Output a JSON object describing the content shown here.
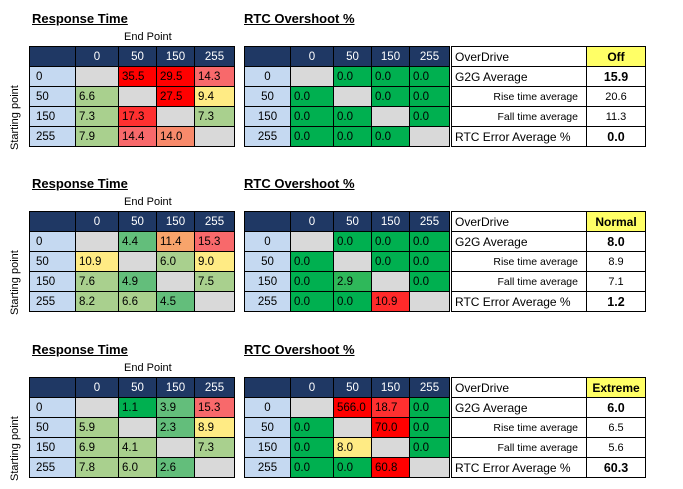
{
  "labels": {
    "response_title": "Response Time",
    "rtc_title": "RTC Overshoot %",
    "end_point": "End Point",
    "starting_point": "Starting point",
    "overdrive": "OverDrive",
    "g2g": "G2G Average",
    "rise": "Rise time average",
    "fall": "Fall time average",
    "rtc_error": "RTC Error Average %"
  },
  "columns": [
    "",
    "0",
    "50",
    "150",
    "255"
  ],
  "rows": [
    "0",
    "50",
    "150",
    "255"
  ],
  "colors": {
    "header": "#1f3864",
    "row_header": "#c5d9f1",
    "empty": "#d9d9d9",
    "mode_highlight": "#ffff66",
    "rtc_zero": "#00b050"
  },
  "sections": [
    {
      "response": [
        [
          "",
          "35.5",
          "29.5",
          "14.3"
        ],
        [
          "6.6",
          "",
          "27.5",
          "9.4"
        ],
        [
          "7.3",
          "17.3",
          "",
          "7.3"
        ],
        [
          "7.9",
          "14.4",
          "14.0",
          ""
        ]
      ],
      "response_colors": [
        [
          "",
          "#ff0000",
          "#ff0000",
          "#f8696b"
        ],
        [
          "#a9d08e",
          "",
          "#ff0000",
          "#ffeb84"
        ],
        [
          "#a9d08e",
          "#ff3030",
          "",
          "#a9d08e"
        ],
        [
          "#a9d08e",
          "#f8696b",
          "#f88a6b",
          ""
        ]
      ],
      "rtc": [
        [
          "",
          "0.0",
          "0.0",
          "0.0"
        ],
        [
          "0.0",
          "",
          "0.0",
          "0.0"
        ],
        [
          "0.0",
          "0.0",
          "",
          "0.0"
        ],
        [
          "0.0",
          "0.0",
          "0.0",
          ""
        ]
      ],
      "rtc_colors": [
        [
          "",
          "#00b050",
          "#00b050",
          "#00b050"
        ],
        [
          "#00b050",
          "",
          "#00b050",
          "#00b050"
        ],
        [
          "#00b050",
          "#00b050",
          "",
          "#00b050"
        ],
        [
          "#00b050",
          "#00b050",
          "#00b050",
          ""
        ]
      ],
      "summary": {
        "mode": "Off",
        "g2g": "15.9",
        "rise": "20.6",
        "fall": "11.3",
        "rtc_error": "0.0"
      }
    },
    {
      "response": [
        [
          "",
          "4.4",
          "11.4",
          "15.3"
        ],
        [
          "10.9",
          "",
          "6.0",
          "9.0"
        ],
        [
          "7.6",
          "4.9",
          "",
          "7.5"
        ],
        [
          "8.2",
          "6.6",
          "4.5",
          ""
        ]
      ],
      "response_colors": [
        [
          "",
          "#63be7b",
          "#f8a46b",
          "#f8696b"
        ],
        [
          "#ffeb84",
          "",
          "#a9d08e",
          "#ffeb84"
        ],
        [
          "#a9d08e",
          "#63be7b",
          "",
          "#a9d08e"
        ],
        [
          "#a9d08e",
          "#a9d08e",
          "#63be7b",
          ""
        ]
      ],
      "rtc": [
        [
          "",
          "0.0",
          "0.0",
          "0.0"
        ],
        [
          "0.0",
          "",
          "0.0",
          "0.0"
        ],
        [
          "0.0",
          "2.9",
          "",
          "0.0"
        ],
        [
          "0.0",
          "0.0",
          "10.9",
          ""
        ]
      ],
      "rtc_colors": [
        [
          "",
          "#00b050",
          "#00b050",
          "#00b050"
        ],
        [
          "#00b050",
          "",
          "#00b050",
          "#00b050"
        ],
        [
          "#00b050",
          "#2fb85a",
          "",
          "#00b050"
        ],
        [
          "#00b050",
          "#00b050",
          "#ff2a2a",
          ""
        ]
      ],
      "summary": {
        "mode": "Normal",
        "g2g": "8.0",
        "rise": "8.9",
        "fall": "7.1",
        "rtc_error": "1.2"
      }
    },
    {
      "response": [
        [
          "",
          "1.1",
          "3.9",
          "15.3"
        ],
        [
          "5.9",
          "",
          "2.3",
          "8.9"
        ],
        [
          "6.9",
          "4.1",
          "",
          "7.3"
        ],
        [
          "7.8",
          "6.0",
          "2.6",
          ""
        ]
      ],
      "response_colors": [
        [
          "",
          "#00b050",
          "#63be7b",
          "#f8696b"
        ],
        [
          "#a9d08e",
          "",
          "#63be7b",
          "#ffeb84"
        ],
        [
          "#a9d08e",
          "#a9d08e",
          "",
          "#a9d08e"
        ],
        [
          "#a9d08e",
          "#a9d08e",
          "#63be7b",
          ""
        ]
      ],
      "rtc": [
        [
          "",
          "566.0",
          "18.7",
          "0.0"
        ],
        [
          "0.0",
          "",
          "70.0",
          "0.0"
        ],
        [
          "0.0",
          "8.0",
          "",
          "0.0"
        ],
        [
          "0.0",
          "0.0",
          "60.8",
          ""
        ]
      ],
      "rtc_colors": [
        [
          "",
          "#ff0000",
          "#ff3030",
          "#00b050"
        ],
        [
          "#00b050",
          "",
          "#ff0000",
          "#00b050"
        ],
        [
          "#00b050",
          "#ffeb84",
          "",
          "#00b050"
        ],
        [
          "#00b050",
          "#00b050",
          "#ff0000",
          ""
        ]
      ],
      "summary": {
        "mode": "Extreme",
        "g2g": "6.0",
        "rise": "6.5",
        "fall": "5.6",
        "rtc_error": "60.3"
      }
    }
  ]
}
